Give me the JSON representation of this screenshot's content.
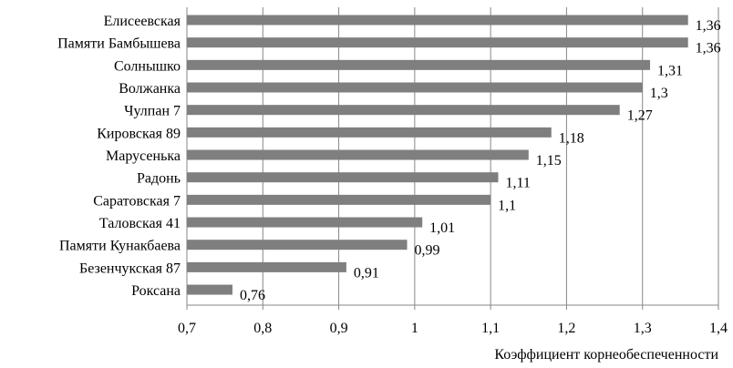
{
  "chart_data": {
    "type": "bar",
    "orientation": "horizontal",
    "title": "",
    "xlabel": "Коэффициент корнеобеспеченности",
    "ylabel": "",
    "xlim": [
      0.7,
      1.4
    ],
    "x_ticks": [
      0.7,
      0.8,
      0.9,
      1.0,
      1.1,
      1.2,
      1.3,
      1.4
    ],
    "x_tick_labels": [
      "0,7",
      "0,8",
      "0,9",
      "1",
      "1,1",
      "1,2",
      "1,3",
      "1,4"
    ],
    "grid": "vertical",
    "legend": "none",
    "categories": [
      "Елисеевская",
      "Памяти Бамбышева",
      "Солнышко",
      "Волжанка",
      "Чулпан 7",
      "Кировская 89",
      "Марусенька",
      "Радонь",
      "Саратовская 7",
      "Таловская 41",
      "Памяти Кунакбаева",
      "Безенчукская 87",
      "Роксана"
    ],
    "values": [
      1.36,
      1.36,
      1.31,
      1.3,
      1.27,
      1.18,
      1.15,
      1.11,
      1.1,
      1.01,
      0.99,
      0.91,
      0.76
    ],
    "value_labels": [
      "1,36",
      "1,36",
      "1,31",
      "1,3",
      "1,27",
      "1,18",
      "1,15",
      "1,11",
      "1,1",
      "1,01",
      "0,99",
      "0,91",
      "0,76"
    ],
    "colors": {
      "bar": "#7f7f7f",
      "grid": "#878787",
      "axis": "#878787",
      "text": "#000000"
    }
  }
}
